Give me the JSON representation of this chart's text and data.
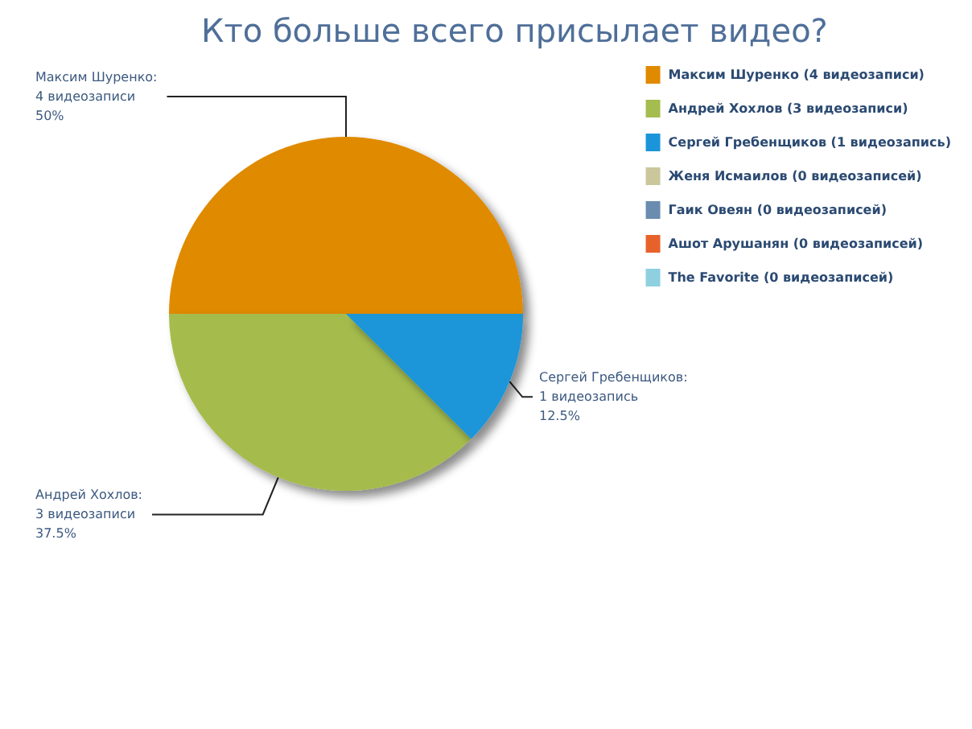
{
  "chart_data": {
    "type": "pie",
    "title": "Кто больше всего присылает видео?",
    "categories": [
      "Максим Шуренко (4 видеозаписи)",
      "Андрей Хохлов (3 видеозаписи)",
      "Сергей Гребенщиков (1 видеозапись)",
      "Женя Исмаилов (0 видеозаписей)",
      "Гаик Овеян (0 видеозаписей)",
      "Ашот Арушанян (0 видеозаписей)",
      "The Favorite (0 видеозаписей)"
    ],
    "values": [
      4,
      3,
      1,
      0,
      0,
      0,
      0
    ],
    "colors": [
      "#e08a00",
      "#a5bc4e",
      "#1b95d9",
      "#cbc79c",
      "#6a8caf",
      "#e7622b",
      "#8ed0e0"
    ],
    "value_labels": [
      "Максим Шуренко:\n4 видеозаписи\n50%",
      "Андрей Хохлов:\n3 видеозаписи\n37.5%",
      "Сергей Гребенщиков:\n1 видеозапись\n12.5%",
      null,
      null,
      null,
      null
    ],
    "legend": "top right"
  }
}
